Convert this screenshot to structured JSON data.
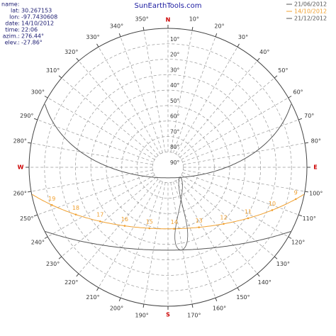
{
  "chart_data": {
    "type": "sun-path",
    "title": "SunEarthTools.com",
    "info_name": "name:",
    "info": [
      {
        "label": "lat:",
        "value": "30.267153"
      },
      {
        "label": "lon:",
        "value": "-97.7430608"
      },
      {
        "label": "date:",
        "value": "14/10/2012"
      },
      {
        "label": "time:",
        "value": "22:06"
      },
      {
        "label": "azim.:",
        "value": "276.44°"
      },
      {
        "label": "elev.:",
        "value": "-27.86°"
      }
    ],
    "series": [
      {
        "name": "21/06/2012",
        "color": "#555555"
      },
      {
        "name": "14/10/2012",
        "color": "#f0a030"
      },
      {
        "name": "21/12/2012",
        "color": "#555555"
      }
    ],
    "cardinals": [
      {
        "value": 0,
        "label": "N"
      },
      {
        "value": 90,
        "label": "E"
      },
      {
        "value": 180,
        "label": "S"
      },
      {
        "value": 270,
        "label": "W"
      }
    ],
    "azimuth_ticks": [
      {
        "value": 10,
        "label": "10°"
      },
      {
        "value": 20,
        "label": "20°"
      },
      {
        "value": 30,
        "label": "30°"
      },
      {
        "value": 40,
        "label": "40°"
      },
      {
        "value": 50,
        "label": "50°"
      },
      {
        "value": 60,
        "label": "60°"
      },
      {
        "value": 70,
        "label": "70°"
      },
      {
        "value": 80,
        "label": "80°"
      },
      {
        "value": 100,
        "label": "100°"
      },
      {
        "value": 110,
        "label": "110°"
      },
      {
        "value": 120,
        "label": "120°"
      },
      {
        "value": 130,
        "label": "130°"
      },
      {
        "value": 140,
        "label": "140°"
      },
      {
        "value": 150,
        "label": "150°"
      },
      {
        "value": 160,
        "label": "160°"
      },
      {
        "value": 170,
        "label": "170°"
      },
      {
        "value": 190,
        "label": "190°"
      },
      {
        "value": 200,
        "label": "200°"
      },
      {
        "value": 210,
        "label": "210°"
      },
      {
        "value": 220,
        "label": "220°"
      },
      {
        "value": 230,
        "label": "230°"
      },
      {
        "value": 240,
        "label": "240°"
      },
      {
        "value": 250,
        "label": "250°"
      },
      {
        "value": 260,
        "label": "260°"
      },
      {
        "value": 280,
        "label": "280°"
      },
      {
        "value": 290,
        "label": "290°"
      },
      {
        "value": 300,
        "label": "300°"
      },
      {
        "value": 310,
        "label": "310°"
      },
      {
        "value": 320,
        "label": "320°"
      },
      {
        "value": 330,
        "label": "330°"
      },
      {
        "value": 340,
        "label": "340°"
      },
      {
        "value": 350,
        "label": "350°"
      }
    ],
    "elevation_ticks": [
      {
        "value": 10,
        "label": "10°"
      },
      {
        "value": 20,
        "label": "20°"
      },
      {
        "value": 30,
        "label": "30°"
      },
      {
        "value": 40,
        "label": "40°"
      },
      {
        "value": 50,
        "label": "50°"
      },
      {
        "value": 60,
        "label": "60°"
      },
      {
        "value": 70,
        "label": "70°"
      },
      {
        "value": 80,
        "label": "80°"
      },
      {
        "value": 90,
        "label": "90°"
      }
    ],
    "hours": [
      9,
      10,
      11,
      12,
      13,
      14,
      15,
      16,
      17,
      18,
      19
    ]
  }
}
